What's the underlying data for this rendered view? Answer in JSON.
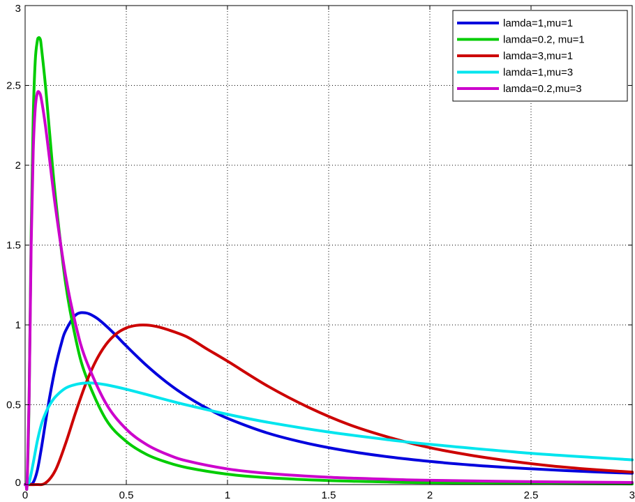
{
  "chart_data": {
    "type": "line",
    "title": "",
    "xlabel": "",
    "ylabel": "",
    "xlim": [
      0,
      3
    ],
    "ylim": [
      0,
      3
    ],
    "grid": true,
    "legend_position": "top-right",
    "x_ticks": [
      "0",
      "0.5",
      "1",
      "1.5",
      "2",
      "2.5",
      "3"
    ],
    "y_ticks": [
      "0",
      "0.5",
      "1",
      "1.5",
      "2",
      "2.5",
      "3"
    ],
    "series": [
      {
        "name": "lamda=1,mu=1",
        "color": "#0000dd",
        "x": [
          0.005,
          0.02,
          0.04,
          0.06,
          0.08,
          0.1,
          0.12,
          0.15,
          0.18,
          0.2,
          0.25,
          0.3,
          0.35,
          0.4,
          0.45,
          0.5,
          0.6,
          0.7,
          0.8,
          0.9,
          1.0,
          1.2,
          1.4,
          1.6,
          1.8,
          2.0,
          2.2,
          2.4,
          2.6,
          2.8,
          3.0
        ],
        "y": [
          0.0,
          0.0,
          0.013,
          0.087,
          0.225,
          0.385,
          0.539,
          0.736,
          0.888,
          0.963,
          1.062,
          1.075,
          1.046,
          0.994,
          0.933,
          0.868,
          0.746,
          0.64,
          0.551,
          0.477,
          0.415,
          0.322,
          0.257,
          0.209,
          0.173,
          0.145,
          0.123,
          0.106,
          0.092,
          0.08,
          0.071
        ]
      },
      {
        "name": "lamda=0.2, mu=1",
        "color": "#00cc00",
        "x": [
          0.005,
          0.01,
          0.02,
          0.03,
          0.04,
          0.05,
          0.06,
          0.067,
          0.075,
          0.08,
          0.1,
          0.12,
          0.15,
          0.2,
          0.25,
          0.3,
          0.4,
          0.5,
          0.6,
          0.7,
          0.8,
          1.0,
          1.2,
          1.5,
          1.8,
          2.0,
          2.5,
          3.0
        ],
        "y": [
          0.0,
          0.013,
          0.559,
          1.581,
          2.3,
          2.653,
          2.776,
          2.799,
          2.788,
          2.744,
          2.506,
          2.218,
          1.8,
          1.261,
          0.913,
          0.682,
          0.407,
          0.27,
          0.189,
          0.14,
          0.106,
          0.065,
          0.043,
          0.025,
          0.016,
          0.012,
          0.007,
          0.004
        ]
      },
      {
        "name": "lamda=3,mu=1",
        "color": "#cc0000",
        "x": [
          0.05,
          0.1,
          0.15,
          0.2,
          0.25,
          0.3,
          0.35,
          0.4,
          0.45,
          0.5,
          0.55,
          0.6,
          0.65,
          0.7,
          0.8,
          0.9,
          1.0,
          1.2,
          1.4,
          1.6,
          1.8,
          2.0,
          2.2,
          2.4,
          2.6,
          2.8,
          3.0
        ],
        "y": [
          0.0,
          0.009,
          0.09,
          0.257,
          0.453,
          0.632,
          0.775,
          0.878,
          0.944,
          0.981,
          0.997,
          0.999,
          0.99,
          0.972,
          0.925,
          0.848,
          0.773,
          0.616,
          0.484,
          0.376,
          0.295,
          0.231,
          0.184,
          0.147,
          0.117,
          0.095,
          0.078
        ]
      },
      {
        "name": "lamda=1,mu=3",
        "color": "#00e5ee",
        "x": [
          0.005,
          0.02,
          0.04,
          0.06,
          0.08,
          0.1,
          0.12,
          0.15,
          0.2,
          0.25,
          0.3,
          0.35,
          0.4,
          0.5,
          0.6,
          0.7,
          0.8,
          1.0,
          1.2,
          1.5,
          1.8,
          2.0,
          2.5,
          3.0
        ],
        "y": [
          0.0,
          0.015,
          0.135,
          0.271,
          0.375,
          0.445,
          0.496,
          0.55,
          0.604,
          0.627,
          0.636,
          0.634,
          0.625,
          0.597,
          0.564,
          0.53,
          0.498,
          0.44,
          0.39,
          0.329,
          0.28,
          0.252,
          0.196,
          0.155
        ]
      },
      {
        "name": "lamda=0.2,mu=3",
        "color": "#cc00cc",
        "x": [
          0.005,
          0.01,
          0.02,
          0.03,
          0.04,
          0.05,
          0.06,
          0.07,
          0.08,
          0.1,
          0.12,
          0.15,
          0.2,
          0.25,
          0.3,
          0.4,
          0.5,
          0.6,
          0.7,
          0.8,
          1.0,
          1.2,
          1.5,
          1.8,
          2.0,
          2.5,
          3.0
        ],
        "y": [
          0.0,
          0.014,
          0.555,
          1.507,
          2.089,
          2.357,
          2.451,
          2.456,
          2.415,
          2.251,
          2.046,
          1.737,
          1.308,
          1.001,
          0.783,
          0.507,
          0.347,
          0.251,
          0.19,
          0.148,
          0.098,
          0.07,
          0.046,
          0.033,
          0.027,
          0.018,
          0.013
        ]
      }
    ]
  }
}
